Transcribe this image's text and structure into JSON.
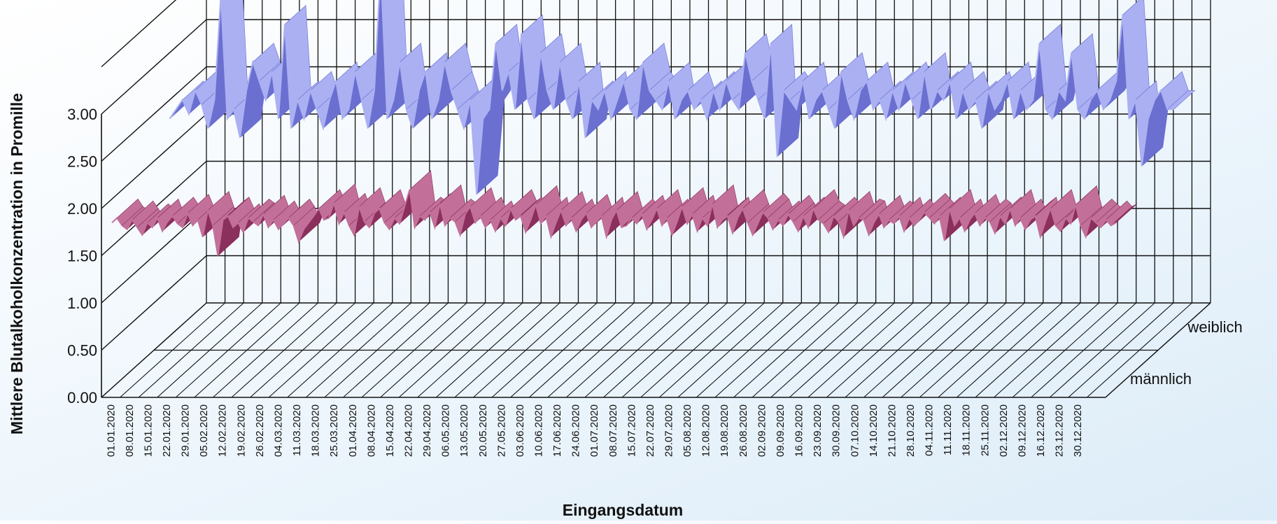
{
  "chart_data": {
    "type": "line",
    "subtype": "3d-ribbon",
    "title": "",
    "xlabel": "Eingangsdatum",
    "ylabel": "Mittlere Blutalkoholkonzentration in Promille",
    "ylim": [
      0,
      3
    ],
    "yticks": [
      "0.00",
      "0.50",
      "1.00",
      "1.50",
      "2.00",
      "2.50",
      "3.00"
    ],
    "x_tick_labels": [
      "01.01.2020",
      "08.01.2020",
      "15.01.2020",
      "22.01.2020",
      "29.01.2020",
      "05.02.2020",
      "12.02.2020",
      "19.02.2020",
      "26.02.2020",
      "04.03.2020",
      "11.03.2020",
      "18.03.2020",
      "25.03.2020",
      "01.04.2020",
      "08.04.2020",
      "15.04.2020",
      "22.04.2020",
      "29.04.2020",
      "06.05.2020",
      "13.05.2020",
      "20.05.2020",
      "27.05.2020",
      "03.06.2020",
      "10.06.2020",
      "17.06.2020",
      "24.06.2020",
      "01.07.2020",
      "08.07.2020",
      "15.07.2020",
      "22.07.2020",
      "29.07.2020",
      "05.08.2020",
      "12.08.2020",
      "19.08.2020",
      "26.08.2020",
      "02.09.2020",
      "09.09.2020",
      "16.09.2020",
      "23.09.2020",
      "30.09.2020",
      "07.10.2020",
      "14.10.2020",
      "21.10.2020",
      "28.10.2020",
      "04.11.2020",
      "11.11.2020",
      "18.11.2020",
      "25.11.2020",
      "02.12.2020",
      "09.12.2020",
      "16.12.2020",
      "23.12.2020",
      "30.12.2020"
    ],
    "grid": true,
    "legend": "series labels on depth axis (right)",
    "series": [
      {
        "name": "männlich",
        "color": "#8b2f5d",
        "light_color": "#c27099",
        "values": [
          1.75,
          1.8,
          1.72,
          1.68,
          1.78,
          1.7,
          1.62,
          1.75,
          1.7,
          1.8,
          1.66,
          1.76,
          1.82,
          1.74,
          1.7,
          1.85,
          1.72,
          1.78,
          1.6,
          1.88,
          1.72,
          1.4,
          1.78,
          1.82,
          1.7,
          1.75,
          1.65,
          1.8,
          1.76,
          1.72,
          1.84,
          1.7,
          1.78,
          1.68,
          1.74,
          1.8,
          1.72,
          1.55,
          1.68,
          1.75,
          1.82,
          1.9,
          1.78,
          1.8,
          1.96,
          1.74,
          1.86,
          1.72,
          1.62,
          1.92,
          1.76,
          1.7,
          1.85,
          1.9,
          1.75,
          1.68,
          1.8,
          1.74,
          1.92,
          2.1,
          1.7,
          1.82,
          1.78,
          1.86,
          1.7,
          1.95,
          1.72,
          1.8,
          1.76,
          1.62,
          1.84,
          1.92,
          1.75,
          1.82,
          1.7,
          1.78,
          1.66,
          1.8,
          1.72,
          1.9,
          1.78,
          1.82,
          1.65,
          1.78,
          1.94,
          1.74,
          1.82,
          1.6,
          1.75,
          1.88,
          1.72,
          1.8,
          1.66,
          1.78,
          1.85,
          1.7,
          1.76,
          1.82,
          1.6,
          1.78,
          1.88,
          1.7,
          1.72,
          1.8,
          1.74,
          1.84,
          1.68,
          1.78,
          1.9,
          1.72,
          1.8,
          1.62,
          1.76,
          1.92,
          1.74,
          1.84,
          1.66,
          1.8,
          1.72,
          1.95,
          1.7,
          1.78,
          1.82,
          1.64,
          1.8,
          1.9,
          1.75,
          1.62,
          1.74,
          1.86,
          1.8,
          1.68,
          1.78,
          1.72,
          1.84,
          1.76,
          1.66,
          1.82,
          1.7,
          1.9,
          1.78,
          1.74,
          1.65,
          1.82,
          1.76,
          1.6,
          1.88,
          1.72,
          1.8,
          1.78,
          1.62,
          1.75,
          1.84,
          1.7,
          1.78,
          1.74,
          1.82,
          1.66,
          1.8,
          1.72,
          1.78,
          1.86,
          1.8,
          1.74,
          1.82,
          1.56,
          1.9,
          1.72,
          1.8,
          1.66,
          1.78,
          1.85,
          1.72,
          1.8,
          1.76,
          1.64,
          1.82,
          1.74,
          1.9,
          1.72,
          1.8,
          1.68,
          1.78,
          1.82,
          1.6,
          1.76,
          1.9,
          1.72,
          1.66,
          1.8,
          1.74,
          1.94,
          1.72,
          1.6,
          1.8,
          1.75,
          1.7,
          1.78,
          1.72,
          1.75
        ]
      },
      {
        "name": "weiblich",
        "color": "#6a6fd0",
        "light_color": "#aab0f2",
        "values": [
          2.3,
          2.4,
          2.5,
          2.35,
          2.6,
          2.45,
          2.2,
          2.5,
          3.6,
          2.3,
          2.4,
          2.1,
          2.6,
          2.9,
          2.7,
          2.5,
          2.8,
          2.3,
          3.3,
          2.2,
          2.5,
          2.3,
          2.6,
          2.4,
          2.2,
          2.5,
          2.7,
          2.3,
          2.4,
          2.8,
          2.5,
          2.2,
          2.6,
          3.9,
          2.3,
          2.5,
          2.9,
          2.4,
          2.2,
          2.6,
          2.8,
          2.3,
          2.5,
          2.9,
          2.6,
          2.4,
          2.2,
          2.5,
          1.5,
          2.3,
          2.4,
          3.1,
          2.6,
          2.8,
          2.4,
          3.2,
          2.5,
          2.3,
          3.0,
          2.6,
          2.4,
          2.9,
          2.5,
          2.3,
          2.7,
          2.1,
          2.5,
          2.4,
          2.6,
          2.3,
          2.5,
          2.7,
          2.4,
          2.3,
          2.9,
          2.6,
          2.5,
          2.4,
          2.7,
          2.3,
          2.5,
          2.6,
          2.4,
          2.5,
          2.3,
          2.6,
          2.4,
          2.7,
          2.5,
          2.4,
          3.0,
          2.7,
          2.5,
          2.3,
          3.1,
          1.9,
          2.6,
          2.5,
          2.4,
          2.7,
          2.3,
          2.5,
          2.6,
          2.4,
          2.2,
          2.8,
          2.5,
          2.3,
          2.6,
          2.7,
          2.4,
          2.5,
          2.3,
          2.6,
          2.4,
          2.7,
          2.5,
          2.3,
          2.8,
          2.4,
          2.6,
          2.5,
          2.7,
          2.3,
          2.6,
          2.4,
          2.5,
          2.2,
          2.6,
          2.4,
          2.5,
          2.7,
          2.3,
          2.6,
          2.4,
          2.5,
          3.1,
          2.4,
          2.3,
          2.6,
          2.5,
          3.0,
          2.4,
          2.3,
          2.5,
          2.6,
          2.4,
          2.5,
          2.7,
          3.4,
          2.3,
          2.5,
          1.8,
          2.3,
          2.5,
          2.6,
          2.4,
          2.4
        ]
      }
    ]
  }
}
